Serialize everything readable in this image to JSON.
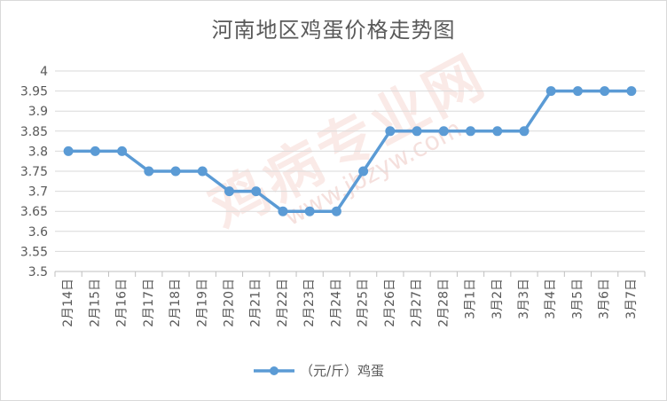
{
  "chart_data": {
    "type": "line",
    "title": "河南地区鸡蛋价格走势图",
    "categories": [
      "2月14日",
      "2月15日",
      "2月16日",
      "2月17日",
      "2月18日",
      "2月19日",
      "2月20日",
      "2月21日",
      "2月22日",
      "2月23日",
      "2月24日",
      "2月25日",
      "2月26日",
      "2月27日",
      "2月28日",
      "3月1日",
      "3月2日",
      "3月3日",
      "3月4日",
      "3月5日",
      "3月6日",
      "3月7日"
    ],
    "series": [
      {
        "name": "（元/斤）鸡蛋",
        "color": "#5b9bd5",
        "values": [
          3.8,
          3.8,
          3.8,
          3.75,
          3.75,
          3.75,
          3.7,
          3.7,
          3.65,
          3.65,
          3.65,
          3.75,
          3.85,
          3.85,
          3.85,
          3.85,
          3.85,
          3.85,
          3.95,
          3.95,
          3.95,
          3.95
        ]
      }
    ],
    "yticks": [
      "3.5",
      "3.55",
      "3.6",
      "3.65",
      "3.7",
      "3.75",
      "3.8",
      "3.85",
      "3.9",
      "3.95",
      "4"
    ],
    "ylim": [
      3.5,
      4
    ],
    "grid": true,
    "legend_position": "bottom"
  },
  "watermark": {
    "brand": "鸡病专业网",
    "url": "www.jbzyw.com"
  }
}
